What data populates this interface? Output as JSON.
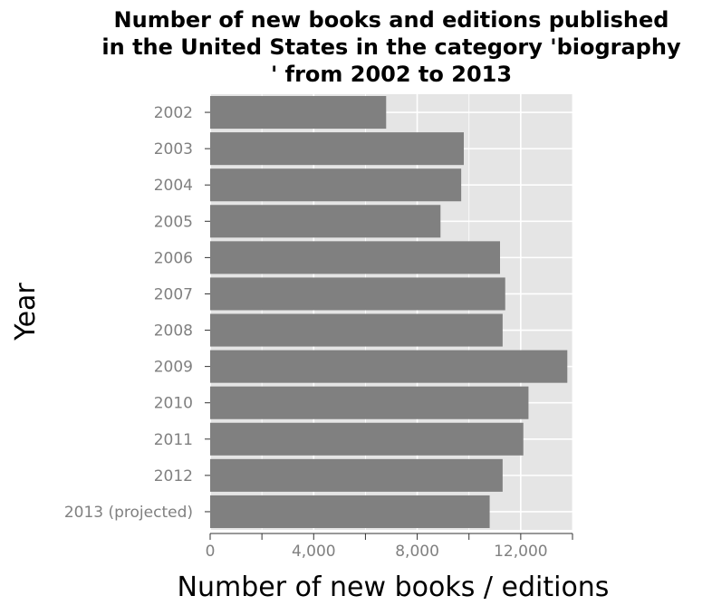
{
  "chart_data": {
    "type": "bar",
    "orientation": "horizontal",
    "title_lines": [
      "Number of new books and editions published",
      "in the United States in the category 'biography",
      "' from 2002 to 2013"
    ],
    "xlabel": "Number of new books / editions",
    "ylabel": "Year",
    "categories": [
      "2002",
      "2003",
      "2004",
      "2005",
      "2006",
      "2007",
      "2008",
      "2009",
      "2010",
      "2011",
      "2012",
      "2013 (projected)"
    ],
    "values": [
      6800,
      9800,
      9700,
      8900,
      11200,
      11400,
      11300,
      13800,
      12300,
      12100,
      11300,
      10800
    ],
    "xlim": [
      0,
      14000
    ],
    "x_ticks": [
      0,
      4000,
      8000,
      12000
    ],
    "x_tick_labels": [
      "0",
      "4,000",
      "8,000",
      "12,000"
    ],
    "grid": true,
    "colors": {
      "bar": "#808080",
      "panel_background": "#e5e5e5",
      "grid": "#ffffff",
      "tick_label": "#808080"
    }
  }
}
